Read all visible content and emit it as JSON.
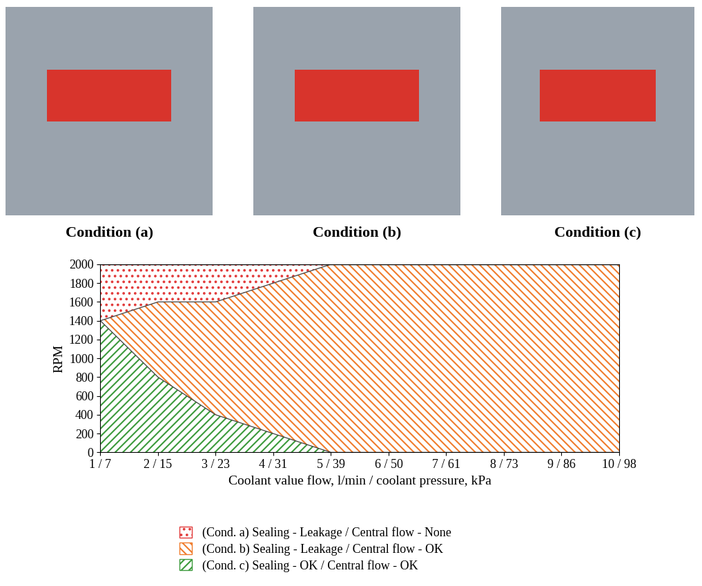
{
  "captions": [
    "Condition (a)",
    "Condition (b)",
    "Condition (c)"
  ],
  "chart_data": {
    "type": "area",
    "stacked": true,
    "x_label": "Coolant value flow, l/min / coolant pressure, kPa",
    "y_label": "RPM",
    "categories": [
      "1 / 7",
      "2 / 15",
      "3 / 23",
      "4 / 31",
      "5 / 39",
      "6 / 50",
      "7 / 61",
      "8 / 73",
      "9 / 86",
      "10 / 98"
    ],
    "series": [
      {
        "name": "(Cond. a) Sealing - Leakage / Central flow - None",
        "color": "#e23b3b",
        "values": [
          600,
          400,
          400,
          200,
          0,
          0,
          0,
          0,
          0,
          0
        ]
      },
      {
        "name": "(Cond. b) Sealing - Leakage / Central flow - OK",
        "color": "#f07c2c",
        "values": [
          0,
          800,
          1200,
          1600,
          2000,
          2000,
          2000,
          2000,
          2000,
          2000
        ]
      },
      {
        "name": "(Cond. c) Sealing - OK / Central flow - OK",
        "color": "#3c9a3c",
        "values": [
          1400,
          800,
          400,
          200,
          0,
          0,
          0,
          0,
          0,
          0
        ]
      }
    ],
    "ylim": [
      0,
      2000
    ],
    "yticks": [
      0,
      200,
      400,
      600,
      800,
      1000,
      1200,
      1400,
      1600,
      1800,
      2000
    ],
    "grid": false,
    "legend": "lower left"
  }
}
